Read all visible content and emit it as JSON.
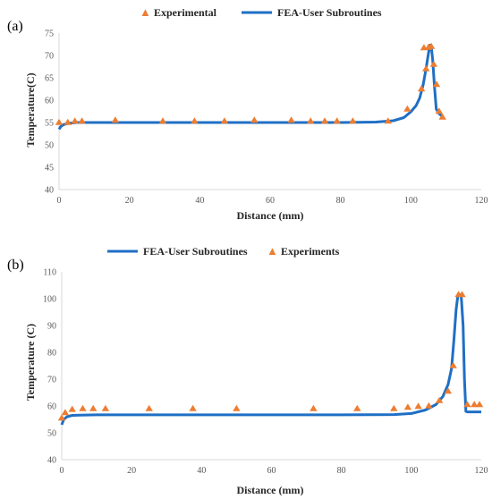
{
  "colors": {
    "fea": "#1f6fc5",
    "experimental": "#ed7d31",
    "axis": "#d9d9d9"
  },
  "chart_data": [
    {
      "type": "line",
      "panel_label": "(a)",
      "xlabel": "Distance (mm)",
      "ylabel": "Temperature(C)",
      "xlim": [
        0,
        120
      ],
      "ylim": [
        40,
        75
      ],
      "xticks": [
        0,
        20,
        40,
        60,
        80,
        100,
        120
      ],
      "yticks": [
        40,
        45,
        50,
        55,
        60,
        65,
        70,
        75
      ],
      "grid": false,
      "legend_position": "top-center",
      "series": [
        {
          "name": "Experimental",
          "kind": "scatter",
          "marker": "triangle",
          "x": [
            0,
            2.5,
            4.5,
            6.5,
            16,
            29.5,
            38.5,
            47,
            55.5,
            66,
            71.5,
            75.5,
            79,
            83.5,
            93.5,
            99,
            103,
            103.7,
            104.3,
            105,
            105.8,
            106.5,
            107.3,
            108,
            109
          ],
          "y": [
            55,
            55,
            55.3,
            55.3,
            55.5,
            55.3,
            55.3,
            55.3,
            55.5,
            55.5,
            55.3,
            55.3,
            55.3,
            55.3,
            55.3,
            58,
            62.5,
            71.7,
            67,
            71.8,
            72,
            68,
            63.5,
            57.5,
            56.2
          ]
        },
        {
          "name": "FEA-User Subroutines",
          "kind": "line",
          "x": [
            0,
            0.5,
            1.2,
            2.5,
            5,
            10,
            20,
            40,
            60,
            80,
            90,
            95,
            98,
            100,
            101.5,
            102.5,
            103.5,
            104.3,
            105,
            105.4,
            105.8,
            106.2,
            106.7,
            107.2,
            108,
            109
          ],
          "y": [
            53.5,
            54.1,
            54.5,
            54.8,
            55,
            55,
            55,
            55,
            55,
            55,
            55.1,
            55.4,
            56.1,
            57.4,
            58.8,
            60.5,
            63.5,
            67,
            70.5,
            72.3,
            72,
            69,
            63,
            58,
            57,
            56.3
          ]
        }
      ]
    },
    {
      "type": "line",
      "panel_label": "(b)",
      "xlabel": "Distance (mm)",
      "ylabel": "Temperature (C)",
      "xlim": [
        0,
        120
      ],
      "ylim": [
        40,
        110
      ],
      "xticks": [
        0,
        20,
        40,
        60,
        80,
        100,
        120
      ],
      "yticks": [
        40,
        50,
        60,
        70,
        80,
        90,
        100,
        110
      ],
      "grid": false,
      "legend_position": "top-center",
      "series": [
        {
          "name": "FEA-User Subroutines",
          "kind": "line",
          "x": [
            0,
            0.6,
            1.5,
            3,
            5,
            10,
            20,
            40,
            60,
            80,
            95,
            100,
            104,
            107,
            109,
            110.5,
            111.5,
            112.2,
            112.8,
            113.3,
            113.8,
            114.3,
            114.8,
            115.2,
            115.6,
            116,
            120
          ],
          "y": [
            53,
            55,
            56,
            56.5,
            56.6,
            56.7,
            56.7,
            56.7,
            56.7,
            56.7,
            56.8,
            57.2,
            58.5,
            60.5,
            63.5,
            68,
            74,
            85,
            96,
            101,
            101.5,
            100.5,
            90,
            70,
            58,
            57.8,
            57.8
          ]
        },
        {
          "name": "Experiments",
          "kind": "scatter",
          "marker": "triangle",
          "x": [
            0,
            1,
            3,
            6,
            9,
            12.5,
            25,
            37.5,
            50,
            72,
            84.5,
            95,
            99,
            102,
            105,
            108,
            110.5,
            112,
            113.5,
            114.5,
            116,
            118,
            119.5
          ],
          "y": [
            55.5,
            57.5,
            58.7,
            59,
            59,
            59,
            59,
            59,
            59,
            59,
            59,
            59,
            59.5,
            59.8,
            60,
            62,
            65.5,
            75,
            101.5,
            101.5,
            60.5,
            60.5,
            60.5
          ]
        }
      ]
    }
  ]
}
